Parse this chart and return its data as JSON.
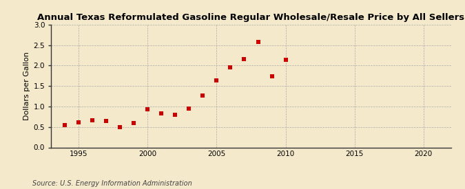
{
  "title": "Annual Texas Reformulated Gasoline Regular Wholesale/Resale Price by All Sellers",
  "ylabel": "Dollars per Gallon",
  "source": "Source: U.S. Energy Information Administration",
  "background_color": "#f5e9cc",
  "plot_background_color": "#f5e9cc",
  "grid_color": "#aaaaaa",
  "marker_color": "#cc0000",
  "years": [
    1994,
    1995,
    1996,
    1997,
    1998,
    1999,
    2000,
    2001,
    2002,
    2003,
    2004,
    2005,
    2006,
    2007,
    2008,
    2009,
    2010
  ],
  "values": [
    0.55,
    0.62,
    0.67,
    0.64,
    0.49,
    0.6,
    0.93,
    0.83,
    0.79,
    0.95,
    1.26,
    1.64,
    1.95,
    2.15,
    2.58,
    1.73,
    2.14
  ],
  "xlim": [
    1993,
    2022
  ],
  "ylim": [
    0.0,
    3.0
  ],
  "xticks": [
    1995,
    2000,
    2005,
    2010,
    2015,
    2020
  ],
  "yticks": [
    0.0,
    0.5,
    1.0,
    1.5,
    2.0,
    2.5,
    3.0
  ],
  "title_fontsize": 9.5,
  "label_fontsize": 8,
  "tick_fontsize": 7.5,
  "source_fontsize": 7,
  "marker_size": 4
}
